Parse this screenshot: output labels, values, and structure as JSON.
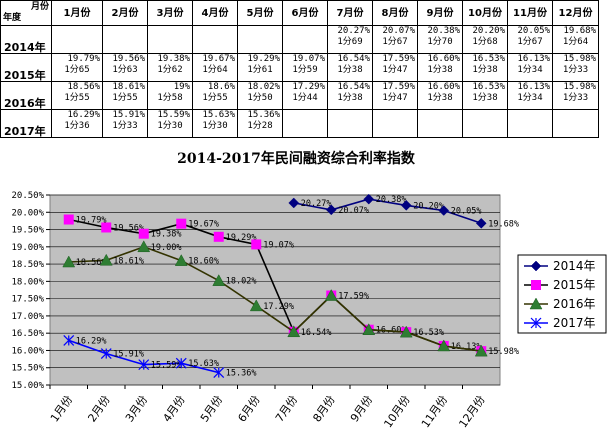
{
  "table": {
    "corner_top": "月份",
    "corner_bottom": "年度",
    "months": [
      "1月份",
      "2月份",
      "3月份",
      "4月份",
      "5月份",
      "6月份",
      "7月份",
      "8月份",
      "9月份",
      "10月份",
      "11月份",
      "12月份"
    ],
    "rows": [
      {
        "year": "2014年",
        "cells": [
          [
            "",
            ""
          ],
          [
            "",
            ""
          ],
          [
            "",
            ""
          ],
          [
            "",
            ""
          ],
          [
            "",
            ""
          ],
          [
            "",
            ""
          ],
          [
            "20.27%",
            "1分69"
          ],
          [
            "20.07%",
            "1分67"
          ],
          [
            "20.38%",
            "1分70"
          ],
          [
            "20.20%",
            "1分68"
          ],
          [
            "20.05%",
            "1分67"
          ],
          [
            "19.68%",
            "1分64"
          ]
        ]
      },
      {
        "year": "2015年",
        "cells": [
          [
            "19.79%",
            "1分65"
          ],
          [
            "19.56%",
            "1分63"
          ],
          [
            "19.38%",
            "1分62"
          ],
          [
            "19.67%",
            "1分64"
          ],
          [
            "19.29%",
            "1分61"
          ],
          [
            "19.07%",
            "1分59"
          ],
          [
            "16.54%",
            "1分38"
          ],
          [
            "17.59%",
            "1分47"
          ],
          [
            "16.60%",
            "1分38"
          ],
          [
            "16.53%",
            "1分38"
          ],
          [
            "16.13%",
            "1分34"
          ],
          [
            "15.98%",
            "1分33"
          ]
        ]
      },
      {
        "year": "2016年",
        "cells": [
          [
            "18.56%",
            "1分55"
          ],
          [
            "18.61%",
            "1分55"
          ],
          [
            "19%",
            "1分58"
          ],
          [
            "18.6%",
            "1分55"
          ],
          [
            "18.02%",
            "1分50"
          ],
          [
            "17.29%",
            "1分44"
          ],
          [
            "16.54%",
            "1分38"
          ],
          [
            "17.59%",
            "1分47"
          ],
          [
            "16.60%",
            "1分38"
          ],
          [
            "16.53%",
            "1分38"
          ],
          [
            "16.13%",
            "1分34"
          ],
          [
            "15.98%",
            "1分33"
          ]
        ]
      },
      {
        "year": "2017年",
        "cells": [
          [
            "16.29%",
            "1分36"
          ],
          [
            "15.91%",
            "1分33"
          ],
          [
            "15.59%",
            "1分30"
          ],
          [
            "15.63%",
            "1分30"
          ],
          [
            "15.36%",
            "1分28"
          ],
          [
            "",
            ""
          ],
          [
            "",
            ""
          ],
          [
            "",
            ""
          ],
          [
            "",
            ""
          ],
          [
            "",
            ""
          ],
          [
            "",
            ""
          ],
          [
            "",
            ""
          ]
        ]
      }
    ]
  },
  "chart_data": {
    "type": "line",
    "title": "2014-2017年民间融资综合利率指数",
    "categories": [
      "1月份",
      "2月份",
      "3月份",
      "4月份",
      "5月份",
      "6月份",
      "7月份",
      "8月份",
      "9月份",
      "10月份",
      "11月份",
      "12月份"
    ],
    "ylim": [
      15.0,
      20.5
    ],
    "ytick_step": 0.5,
    "grid": true,
    "legend_position": "right",
    "plot_background": "#c0c0c0",
    "series": [
      {
        "name": "2014年",
        "color": "#000080",
        "marker": "diamond",
        "line_color": "#000080",
        "values": [
          null,
          null,
          null,
          null,
          null,
          null,
          20.27,
          20.07,
          20.38,
          20.2,
          20.05,
          19.68
        ],
        "labels": [
          "",
          "",
          "",
          "",
          "",
          "",
          "20.27%",
          "20.07%",
          "20.38%",
          "20.20%",
          "20.05%",
          "19.68%"
        ]
      },
      {
        "name": "2015年",
        "color": "#ff00ff",
        "marker": "square",
        "line_color": "#000000",
        "values": [
          19.79,
          19.56,
          19.38,
          19.67,
          19.29,
          19.07,
          16.54,
          17.59,
          16.6,
          16.53,
          16.13,
          15.98
        ],
        "labels": [
          "19.79%",
          "19.56%",
          "19.38%",
          "19.67%",
          "19.29%",
          "19.07%",
          "16.54%",
          "17.59%",
          "16.60%",
          "16.53%",
          "16.13%",
          "15.98%"
        ]
      },
      {
        "name": "2016年",
        "color": "#2e7d32",
        "marker": "triangle",
        "line_color": "#333300",
        "values": [
          18.56,
          18.61,
          19.0,
          18.6,
          18.02,
          17.29,
          16.54,
          17.59,
          16.6,
          16.53,
          16.13,
          15.98
        ],
        "labels": [
          "18.56%",
          "18.61%",
          "19.00%",
          "18.60%",
          "18.02%",
          "17.29%",
          "",
          "",
          "",
          "",
          "",
          ""
        ]
      },
      {
        "name": "2017年",
        "color": "#0000ff",
        "marker": "star",
        "line_color": "#0000ff",
        "values": [
          16.29,
          15.91,
          15.59,
          15.63,
          15.36,
          null,
          null,
          null,
          null,
          null,
          null,
          null
        ],
        "labels": [
          "16.29%",
          "15.91%",
          "15.59%",
          "15.63%",
          "15.36%",
          "",
          "",
          "",
          "",
          "",
          "",
          ""
        ]
      }
    ]
  }
}
